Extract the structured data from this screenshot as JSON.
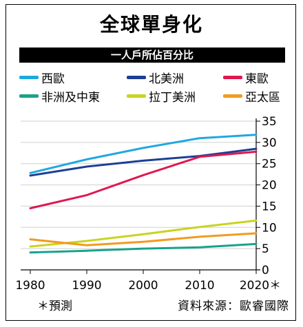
{
  "title": "全球單身化",
  "subtitle": "一人戶所佔百分比",
  "note": "＊預測",
  "source": "資料來源：歐睿國際",
  "chart_data": {
    "type": "line",
    "x": [
      1980,
      1990,
      2000,
      2010,
      2020
    ],
    "x_tick_labels": [
      "1980",
      "1990",
      "2000",
      "2010",
      "2020＊"
    ],
    "ylim": [
      0,
      35
    ],
    "y_ticks": [
      0,
      5,
      10,
      15,
      20,
      25,
      30,
      35
    ],
    "grid": true,
    "legend_position": "top",
    "xlabel": "",
    "ylabel": "",
    "series": [
      {
        "name": "西歐",
        "color": "#1fa8e0",
        "values": [
          22.8,
          26.0,
          28.7,
          31.0,
          31.8
        ]
      },
      {
        "name": "北美洲",
        "color": "#1c3f94",
        "values": [
          22.2,
          24.3,
          25.7,
          26.8,
          28.5
        ]
      },
      {
        "name": "東歐",
        "color": "#e0184e",
        "values": [
          14.5,
          17.6,
          22.3,
          26.6,
          27.8
        ]
      },
      {
        "name": "非洲及中東",
        "color": "#17a38a",
        "values": [
          4.1,
          4.5,
          5.0,
          5.3,
          6.1
        ]
      },
      {
        "name": "拉丁美洲",
        "color": "#c8d420",
        "values": [
          5.5,
          6.8,
          8.4,
          10.1,
          11.6
        ]
      },
      {
        "name": "亞太區",
        "color": "#f29a1f",
        "values": [
          7.2,
          5.8,
          6.6,
          7.8,
          8.6
        ]
      }
    ]
  }
}
